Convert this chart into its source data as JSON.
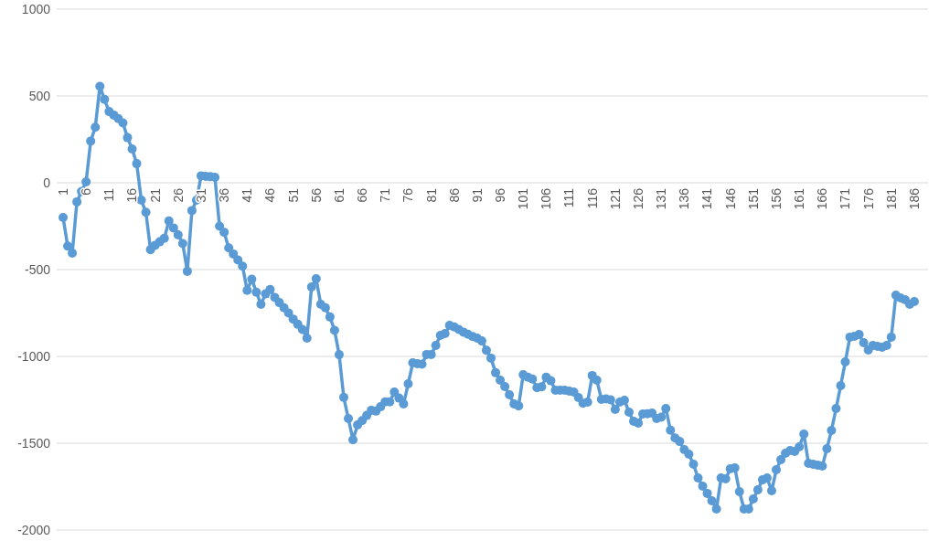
{
  "chart_data": {
    "type": "line",
    "categories": [
      "1",
      null,
      null,
      null,
      null,
      "6",
      null,
      null,
      null,
      null,
      "11",
      null,
      null,
      null,
      null,
      "16",
      null,
      null,
      null,
      null,
      "21",
      null,
      null,
      null,
      null,
      "26",
      null,
      null,
      null,
      null,
      "31",
      null,
      null,
      null,
      null,
      "36",
      null,
      null,
      null,
      null,
      "41",
      null,
      null,
      null,
      null,
      "46",
      null,
      null,
      null,
      null,
      "51",
      null,
      null,
      null,
      null,
      "56",
      null,
      null,
      null,
      null,
      "61",
      null,
      null,
      null,
      null,
      "66",
      null,
      null,
      null,
      null,
      "71",
      null,
      null,
      null,
      null,
      "76",
      null,
      null,
      null,
      null,
      "81",
      null,
      null,
      null,
      null,
      "86",
      null,
      null,
      null,
      null,
      "91",
      null,
      null,
      null,
      null,
      "96",
      null,
      null,
      null,
      null,
      "101",
      null,
      null,
      null,
      null,
      "106",
      null,
      null,
      null,
      null,
      "111",
      null,
      null,
      null,
      null,
      "116",
      null,
      null,
      null,
      null,
      "121",
      null,
      null,
      null,
      null,
      "126",
      null,
      null,
      null,
      null,
      "131",
      null,
      null,
      null,
      null,
      "136",
      null,
      null,
      null,
      null,
      "141",
      null,
      null,
      null,
      null,
      "146",
      null,
      null,
      null,
      null,
      "151",
      null,
      null,
      null,
      null,
      "156",
      null,
      null,
      null,
      null,
      "161",
      null,
      null,
      null,
      null,
      "166",
      null,
      null,
      null,
      null,
      "171",
      null,
      null,
      null,
      null,
      "176",
      null,
      null,
      null,
      null,
      "181",
      null,
      null,
      null,
      null,
      "186"
    ],
    "series": [
      {
        "color": "#5b9bd5",
        "values": [
          -200,
          -365,
          -405,
          -110,
          -50,
          5,
          240,
          320,
          555,
          480,
          410,
          390,
          370,
          345,
          260,
          195,
          110,
          -100,
          -170,
          -385,
          -360,
          -340,
          -320,
          -220,
          -260,
          -300,
          -350,
          -510,
          -160,
          -100,
          40,
          37,
          35,
          32,
          -250,
          -285,
          -375,
          -410,
          -445,
          -480,
          -620,
          -555,
          -630,
          -700,
          -640,
          -615,
          -660,
          -690,
          -720,
          -750,
          -785,
          -815,
          -845,
          -895,
          -600,
          -553,
          -700,
          -720,
          -773,
          -850,
          -990,
          -1236,
          -1358,
          -1480,
          -1395,
          -1370,
          -1340,
          -1310,
          -1315,
          -1290,
          -1262,
          -1262,
          -1205,
          -1240,
          -1274,
          -1158,
          -1037,
          -1042,
          -1045,
          -989,
          -989,
          -937,
          -879,
          -868,
          -821,
          -830,
          -845,
          -860,
          -872,
          -885,
          -895,
          -911,
          -965,
          -1010,
          -1094,
          -1137,
          -1174,
          -1221,
          -1274,
          -1285,
          -1105,
          -1120,
          -1130,
          -1180,
          -1175,
          -1120,
          -1140,
          -1195,
          -1195,
          -1195,
          -1200,
          -1205,
          -1237,
          -1270,
          -1263,
          -1110,
          -1137,
          -1247,
          -1245,
          -1250,
          -1305,
          -1263,
          -1253,
          -1321,
          -1374,
          -1384,
          -1332,
          -1330,
          -1326,
          -1358,
          -1350,
          -1300,
          -1425,
          -1470,
          -1490,
          -1537,
          -1563,
          -1621,
          -1700,
          -1747,
          -1789,
          -1832,
          -1879,
          -1700,
          -1705,
          -1647,
          -1642,
          -1779,
          -1879,
          -1879,
          -1821,
          -1768,
          -1711,
          -1700,
          -1774,
          -1653,
          -1595,
          -1558,
          -1542,
          -1547,
          -1521,
          -1447,
          -1616,
          -1621,
          -1626,
          -1632,
          -1532,
          -1426,
          -1300,
          -1168,
          -1032,
          -889,
          -884,
          -874,
          -921,
          -963,
          -937,
          -942,
          -947,
          -937,
          -889,
          -647,
          -663,
          -674,
          -700,
          -684
        ]
      }
    ],
    "ylim": [
      -2000,
      1000
    ],
    "yticks": [
      -2000,
      -1500,
      -1000,
      -500,
      0,
      500,
      1000
    ],
    "grid": "y",
    "marker": "circle"
  }
}
